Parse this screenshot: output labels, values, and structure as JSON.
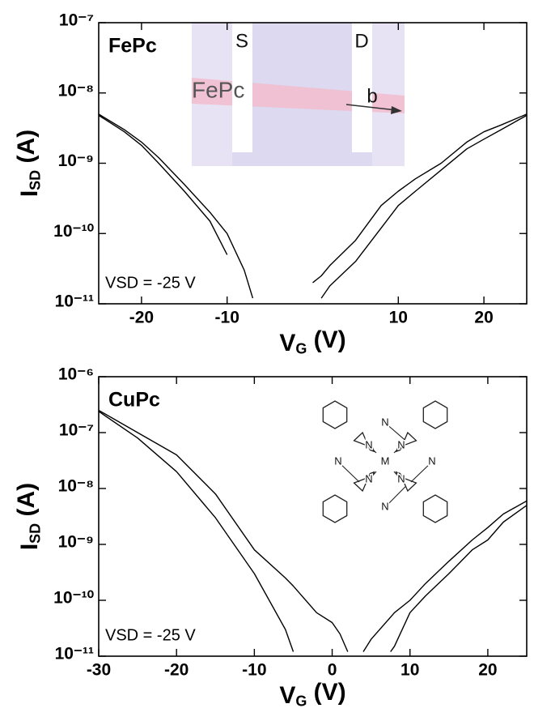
{
  "chart_data": [
    {
      "type": "line",
      "title": "FePc",
      "annotation": "VSD = -25 V",
      "xlabel": [
        "V",
        "G",
        " (V)"
      ],
      "ylabel": [
        "I",
        "SD",
        " (A)"
      ],
      "inset_labels": [
        "S",
        "D",
        "FePc",
        "b"
      ],
      "log_y": true,
      "xlim": [
        -25,
        25
      ],
      "ylim": [
        1e-11,
        1e-07
      ],
      "xticks": [
        -20,
        -10,
        10,
        20
      ],
      "yticks": [
        {
          "value": 1e-07,
          "label": "10⁻⁷"
        },
        {
          "value": 1e-08,
          "label": "10⁻⁸"
        },
        {
          "value": 1e-09,
          "label": "10⁻⁹"
        },
        {
          "value": 1e-10,
          "label": "10⁻¹⁰"
        },
        {
          "value": 1e-11,
          "label": "10⁻¹¹"
        }
      ],
      "x": [
        -25,
        -22,
        -20,
        -18,
        -15,
        -12,
        -10,
        -8,
        -7,
        -5,
        -2,
        0,
        1,
        2,
        5,
        8,
        10,
        12,
        15,
        18,
        20,
        22,
        25
      ],
      "series": [
        {
          "color": "#000000",
          "values": [
            5e-09,
            3e-09,
            2e-09,
            1.2e-09,
            5e-10,
            2e-10,
            1e-10,
            3e-11,
            1.2e-11,
            null,
            null,
            2e-11,
            2.5e-11,
            3.5e-11,
            8e-11,
            2.5e-10,
            4e-10,
            6e-10,
            1e-09,
            2e-09,
            2.8e-09,
            3.5e-09,
            5e-09
          ]
        },
        {
          "color": "#000000",
          "values": [
            4.8e-09,
            2.8e-09,
            1.8e-09,
            1e-09,
            4e-10,
            1.5e-10,
            5e-11,
            null,
            null,
            null,
            null,
            null,
            1.2e-11,
            1.8e-11,
            4e-11,
            1.2e-10,
            2.5e-10,
            4e-10,
            8e-10,
            1.6e-09,
            2.2e-09,
            3e-09,
            4.8e-09
          ]
        }
      ]
    },
    {
      "type": "line",
      "title": "CuPc",
      "annotation": "VSD = -25 V",
      "xlabel": [
        "V",
        "G",
        " (V)"
      ],
      "ylabel": [
        "I",
        "SD",
        " (A)"
      ],
      "molecule_labels": [
        "N",
        "N",
        "N",
        "N",
        "N",
        "N",
        "N",
        "N",
        "M"
      ],
      "log_y": true,
      "xlim": [
        -30,
        25
      ],
      "ylim": [
        1e-11,
        1e-06
      ],
      "xticks": [
        -30,
        -20,
        -10,
        0,
        10,
        20
      ],
      "yticks": [
        {
          "value": 1e-06,
          "label": "10⁻⁶"
        },
        {
          "value": 1e-07,
          "label": "10⁻⁷"
        },
        {
          "value": 1e-08,
          "label": "10⁻⁸"
        },
        {
          "value": 1e-09,
          "label": "10⁻⁹"
        },
        {
          "value": 1e-10,
          "label": "10⁻¹⁰"
        },
        {
          "value": 1e-11,
          "label": "10⁻¹¹"
        }
      ],
      "x": [
        -30,
        -25,
        -20,
        -15,
        -10,
        -6,
        -5,
        -2,
        0,
        1,
        2,
        4,
        5,
        7.5,
        8,
        10,
        12,
        15,
        18,
        20,
        22,
        25
      ],
      "series": [
        {
          "color": "#000000",
          "values": [
            2.5e-07,
            1e-07,
            4e-08,
            8e-09,
            8e-10,
            2.5e-10,
            1.8e-10,
            6e-11,
            4e-11,
            2.5e-11,
            1.2e-11,
            null,
            null,
            1.2e-11,
            1.5e-11,
            6e-11,
            1.2e-10,
            3e-10,
            8e-10,
            1.2e-09,
            2.5e-09,
            5e-09
          ]
        },
        {
          "color": "#000000",
          "values": [
            2.4e-07,
            8e-08,
            2e-08,
            3e-09,
            3e-10,
            3e-11,
            1.2e-11,
            null,
            null,
            null,
            null,
            1.2e-11,
            2e-11,
            5e-11,
            6e-11,
            1e-10,
            2e-10,
            5e-10,
            1.2e-09,
            2e-09,
            3.5e-09,
            6e-09
          ]
        }
      ]
    }
  ]
}
